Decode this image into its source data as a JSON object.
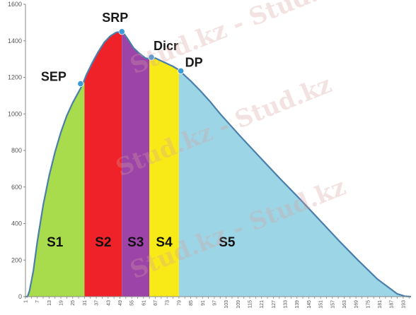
{
  "chart_data": {
    "type": "area",
    "title": "",
    "xlabel": "",
    "ylabel": "",
    "ylim": [
      0,
      1600
    ],
    "xlim": [
      1,
      197
    ],
    "yticks": [
      0,
      200,
      400,
      600,
      800,
      1000,
      1200,
      1400,
      1600
    ],
    "xticks": [
      1,
      7,
      13,
      19,
      25,
      31,
      37,
      43,
      49,
      55,
      61,
      67,
      73,
      79,
      85,
      91,
      97,
      103,
      109,
      115,
      121,
      127,
      133,
      139,
      145,
      151,
      157,
      163,
      169,
      175,
      181,
      187,
      193
    ],
    "grid": false,
    "legend": "none",
    "curve": {
      "x": [
        1,
        2,
        3,
        5,
        7,
        10,
        13,
        16,
        19,
        22,
        25,
        28,
        30,
        32,
        35,
        38,
        41,
        44,
        47,
        49,
        51,
        53,
        56,
        59,
        62,
        65,
        67,
        70,
        73,
        76,
        79,
        82,
        85,
        90,
        95,
        100,
        110,
        120,
        130,
        140,
        150,
        160,
        170,
        180,
        190,
        194,
        197
      ],
      "y": [
        0,
        0,
        30,
        140,
        300,
        500,
        660,
        790,
        900,
        990,
        1060,
        1120,
        1160,
        1215,
        1280,
        1340,
        1390,
        1425,
        1445,
        1450,
        1440,
        1410,
        1360,
        1330,
        1305,
        1300,
        1305,
        1290,
        1275,
        1260,
        1240,
        1210,
        1180,
        1125,
        1065,
        1000,
        880,
        765,
        650,
        540,
        425,
        310,
        200,
        95,
        15,
        2,
        0
      ]
    },
    "regions": [
      {
        "name": "S1",
        "x_start": 1,
        "x_end": 31,
        "color": "#a8dc4c"
      },
      {
        "name": "S2",
        "x_start": 31,
        "x_end": 50,
        "color": "#ee2228"
      },
      {
        "name": "S3",
        "x_start": 50,
        "x_end": 64,
        "color": "#9c44a8"
      },
      {
        "name": "S4",
        "x_start": 64,
        "x_end": 79,
        "color": "#f7ea16"
      },
      {
        "name": "S5",
        "x_start": 79,
        "x_end": 197,
        "color": "#9cd6e6"
      }
    ],
    "points": [
      {
        "label": "SEP",
        "x": 29,
        "y": 1165
      },
      {
        "label": "SRP",
        "x": 50,
        "y": 1450
      },
      {
        "label": "Dicr",
        "x": 65,
        "y": 1310
      },
      {
        "label": "DP",
        "x": 80,
        "y": 1235
      }
    ],
    "line_color": "#4a7fab",
    "point_color": "#3d9ad8"
  },
  "watermark": {
    "text": "Stud.kz - Stud.kz"
  }
}
